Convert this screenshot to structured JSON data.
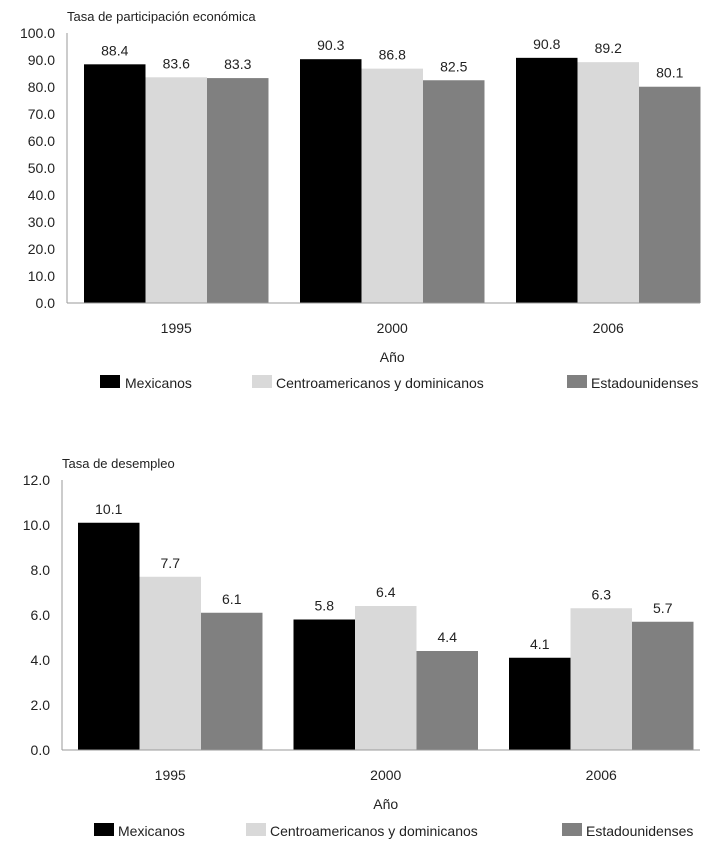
{
  "chart_data": [
    {
      "type": "bar",
      "title": "Tasa de participación económica",
      "xlabel": "Año",
      "ylabel": "",
      "ylim": [
        0,
        100
      ],
      "yticks": [
        "0.0",
        "10.0",
        "20.0",
        "30.0",
        "40.0",
        "50.0",
        "60.0",
        "70.0",
        "80.0",
        "90.0",
        "100.0"
      ],
      "categories": [
        "1995",
        "2000",
        "2006"
      ],
      "series": [
        {
          "name": "Mexicanos",
          "values": [
            88.4,
            90.3,
            90.8
          ],
          "labels": [
            "88.4",
            "90.3",
            "90.8"
          ],
          "color": "#000000"
        },
        {
          "name": "Centroamericanos y dominicanos",
          "values": [
            83.6,
            86.8,
            89.2
          ],
          "labels": [
            "83.6",
            "86.8",
            "89.2"
          ],
          "color": "#d9d9d9"
        },
        {
          "name": "Estadounidenses",
          "values": [
            83.3,
            82.5,
            80.1
          ],
          "labels": [
            "83.3",
            "82.5",
            "80.1"
          ],
          "color": "#808080"
        }
      ],
      "grid": false,
      "legend": "bottom"
    },
    {
      "type": "bar",
      "title": "Tasa de desempleo",
      "xlabel": "Año",
      "ylabel": "",
      "ylim": [
        0,
        12
      ],
      "yticks": [
        "0.0",
        "2.0",
        "4.0",
        "6.0",
        "8.0",
        "10.0",
        "12.0"
      ],
      "categories": [
        "1995",
        "2000",
        "2006"
      ],
      "series": [
        {
          "name": "Mexicanos",
          "values": [
            10.1,
            5.8,
            4.1
          ],
          "labels": [
            "10.1",
            "5.8",
            "4.1"
          ],
          "color": "#000000"
        },
        {
          "name": "Centroamericanos y dominicanos",
          "values": [
            7.7,
            6.4,
            6.3
          ],
          "labels": [
            "7.7",
            "6.4",
            "6.3"
          ],
          "color": "#d9d9d9"
        },
        {
          "name": "Estadounidenses",
          "values": [
            6.1,
            4.4,
            5.7
          ],
          "labels": [
            "6.1",
            "4.4",
            "5.7"
          ],
          "color": "#808080"
        }
      ],
      "grid": false,
      "legend": "bottom"
    }
  ]
}
